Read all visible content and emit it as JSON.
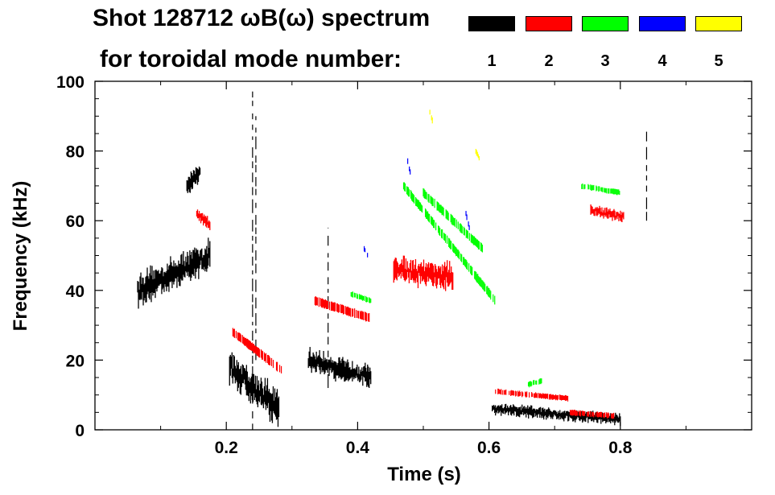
{
  "chart_data": {
    "type": "heatmap",
    "title_line1": "Shot 128712 ωB(ω) spectrum",
    "title_line2": "for toroidal mode number:",
    "xlabel": "Time (s)",
    "ylabel": "Frequency (kHz)",
    "xlim": [
      0.0,
      1.0
    ],
    "ylim": [
      0,
      100
    ],
    "xticks": [
      0.2,
      0.4,
      0.6,
      0.8
    ],
    "xtick_labels": [
      "0.2",
      "0.4",
      "0.6",
      "0.8"
    ],
    "yticks": [
      0,
      20,
      40,
      60,
      80,
      100
    ],
    "ytick_labels": [
      "0",
      "20",
      "40",
      "60",
      "80",
      "100"
    ],
    "legend": [
      {
        "label": "1",
        "color": "#000000"
      },
      {
        "label": "2",
        "color": "#ff0000"
      },
      {
        "label": "3",
        "color": "#00ff00"
      },
      {
        "label": "4",
        "color": "#0000ff"
      },
      {
        "label": "5",
        "color": "#ffff00"
      }
    ],
    "features": [
      {
        "mode": "1",
        "t_start": 0.065,
        "t_end": 0.175,
        "f_start": 40,
        "f_end": 50,
        "spread": 8,
        "kind": "band"
      },
      {
        "mode": "1",
        "t_start": 0.14,
        "t_end": 0.16,
        "f_start": 70,
        "f_end": 74,
        "spread": 5,
        "kind": "band"
      },
      {
        "mode": "1",
        "t_start": 0.205,
        "t_end": 0.28,
        "f_start": 18,
        "f_end": 6,
        "spread": 9,
        "kind": "band"
      },
      {
        "mode": "1",
        "t_start": 0.325,
        "t_end": 0.42,
        "f_start": 20,
        "f_end": 15,
        "spread": 6,
        "kind": "band"
      },
      {
        "mode": "1",
        "t_start": 0.605,
        "t_end": 0.8,
        "f_start": 6,
        "f_end": 3,
        "spread": 3,
        "kind": "band"
      },
      {
        "mode": "1",
        "t_start": 0.24,
        "t_end": 0.24,
        "f_start": 0,
        "f_end": 98,
        "spread": 0,
        "kind": "vline"
      },
      {
        "mode": "1",
        "t_start": 0.245,
        "t_end": 0.245,
        "f_start": 20,
        "f_end": 90,
        "spread": 0,
        "kind": "vline"
      },
      {
        "mode": "1",
        "t_start": 0.355,
        "t_end": 0.355,
        "f_start": 12,
        "f_end": 58,
        "spread": 0,
        "kind": "vline"
      },
      {
        "mode": "1",
        "t_start": 0.84,
        "t_end": 0.84,
        "f_start": 60,
        "f_end": 86,
        "spread": 0,
        "kind": "vline"
      },
      {
        "mode": "2",
        "t_start": 0.21,
        "t_end": 0.285,
        "f_start": 28,
        "f_end": 17,
        "spread": 2,
        "kind": "line"
      },
      {
        "mode": "2",
        "t_start": 0.335,
        "t_end": 0.42,
        "f_start": 37,
        "f_end": 32,
        "spread": 2,
        "kind": "line"
      },
      {
        "mode": "2",
        "t_start": 0.455,
        "t_end": 0.545,
        "f_start": 46,
        "f_end": 44,
        "spread": 7,
        "kind": "band"
      },
      {
        "mode": "2",
        "t_start": 0.155,
        "t_end": 0.175,
        "f_start": 62,
        "f_end": 59,
        "spread": 3,
        "kind": "band"
      },
      {
        "mode": "2",
        "t_start": 0.755,
        "t_end": 0.805,
        "f_start": 63,
        "f_end": 61,
        "spread": 3,
        "kind": "band"
      },
      {
        "mode": "2",
        "t_start": 0.61,
        "t_end": 0.72,
        "f_start": 11,
        "f_end": 9,
        "spread": 1,
        "kind": "line"
      },
      {
        "mode": "2",
        "t_start": 0.72,
        "t_end": 0.79,
        "f_start": 5,
        "f_end": 4,
        "spread": 1,
        "kind": "line"
      },
      {
        "mode": "3",
        "t_start": 0.47,
        "t_end": 0.61,
        "f_start": 70,
        "f_end": 37,
        "spread": 2,
        "kind": "line"
      },
      {
        "mode": "3",
        "t_start": 0.5,
        "t_end": 0.59,
        "f_start": 68,
        "f_end": 52,
        "spread": 2,
        "kind": "line"
      },
      {
        "mode": "3",
        "t_start": 0.39,
        "t_end": 0.42,
        "f_start": 39,
        "f_end": 37,
        "spread": 1,
        "kind": "line"
      },
      {
        "mode": "3",
        "t_start": 0.74,
        "t_end": 0.8,
        "f_start": 70,
        "f_end": 68,
        "spread": 1,
        "kind": "line"
      },
      {
        "mode": "3",
        "t_start": 0.66,
        "t_end": 0.68,
        "f_start": 13,
        "f_end": 14,
        "spread": 1,
        "kind": "line"
      },
      {
        "mode": "4",
        "t_start": 0.475,
        "t_end": 0.48,
        "f_start": 78,
        "f_end": 74,
        "spread": 1,
        "kind": "line"
      },
      {
        "mode": "4",
        "t_start": 0.565,
        "t_end": 0.57,
        "f_start": 62,
        "f_end": 58,
        "spread": 1,
        "kind": "line"
      },
      {
        "mode": "4",
        "t_start": 0.41,
        "t_end": 0.415,
        "f_start": 52,
        "f_end": 50,
        "spread": 1,
        "kind": "line"
      },
      {
        "mode": "5",
        "t_start": 0.58,
        "t_end": 0.585,
        "f_start": 80,
        "f_end": 78,
        "spread": 1,
        "kind": "line"
      },
      {
        "mode": "5",
        "t_start": 0.51,
        "t_end": 0.515,
        "f_start": 91,
        "f_end": 88,
        "spread": 1,
        "kind": "line"
      }
    ]
  }
}
